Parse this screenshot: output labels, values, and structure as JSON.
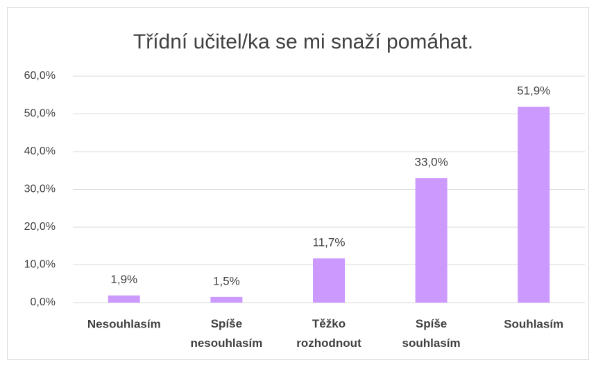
{
  "chart_data": {
    "type": "bar",
    "title": "Třídní učitel/ka se mi snaží pomáhat.",
    "categories": [
      "Nesouhlasím",
      "Spíše nesouhlasím",
      "Těžko rozhodnout",
      "Spíše souhlasím",
      "Souhlasím"
    ],
    "values": [
      1.9,
      1.5,
      11.7,
      33.0,
      51.9
    ],
    "value_labels": [
      "1,9%",
      "1,5%",
      "11,7%",
      "33,0%",
      "51,9%"
    ],
    "color": "#cc99ff",
    "ylim": [
      0,
      60
    ],
    "yticks": [
      {
        "value": 0,
        "label": "0,0%"
      },
      {
        "value": 10,
        "label": "10,0%"
      },
      {
        "value": 20,
        "label": "20,0%"
      },
      {
        "value": 30,
        "label": "30,0%"
      },
      {
        "value": 40,
        "label": "40,0%"
      },
      {
        "value": 50,
        "label": "50,0%"
      },
      {
        "value": 60,
        "label": "60,0%"
      }
    ],
    "grid": true
  }
}
